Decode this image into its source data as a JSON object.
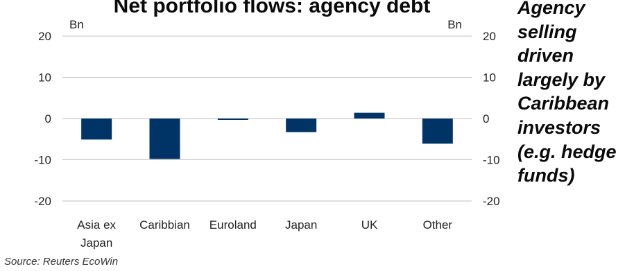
{
  "chart_data": {
    "type": "bar",
    "title": "Net portfolio flows: agency debt",
    "unit_left": "Bn",
    "unit_right": "Bn",
    "categories": [
      "Asia ex Japan",
      "Caribbian",
      "Euroland",
      "Japan",
      "UK",
      "Other"
    ],
    "category_lines": [
      [
        "Asia ex",
        "Japan"
      ],
      [
        "Caribbian"
      ],
      [
        "Euroland"
      ],
      [
        "Japan"
      ],
      [
        "UK"
      ],
      [
        "Other"
      ]
    ],
    "values": [
      -5.1,
      -9.8,
      -0.3,
      -3.3,
      1.4,
      -6.1
    ],
    "ylim": [
      -20,
      20
    ],
    "yticks": [
      20,
      10,
      0,
      -10,
      -20
    ],
    "ytick_labels": [
      "20",
      "10",
      "0",
      "-10",
      "-20"
    ],
    "grid": true,
    "bar_color": "#003466",
    "grid_color": "#bfbfbf"
  },
  "annotation": {
    "lines": [
      "Agency",
      "selling",
      "driven",
      "largely by",
      "Caribbean",
      "investors",
      "(e.g. hedge",
      "funds)"
    ]
  },
  "source": "Source: Reuters EcoWin"
}
